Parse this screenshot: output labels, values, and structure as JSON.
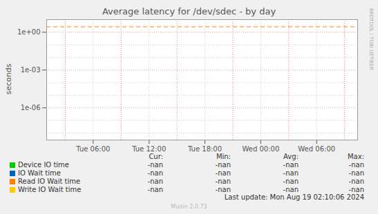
{
  "chart_data": {
    "type": "line",
    "title": "Average latency for /dev/sdec - by day",
    "y_label": "seconds",
    "side_text": "RRDTOOL / TOBI OETIKER",
    "footer": "Last update: Mon Aug 19 02:10:06 2024",
    "version": "Munin 2.0.73",
    "log": "y",
    "grid": true,
    "x": [
      1.0,
      34.4
    ],
    "xlim": [
      1.0,
      34.4
    ],
    "xticks": [
      {
        "value": 6,
        "label": "Tue 06:00"
      },
      {
        "value": 12,
        "label": "Tue 12:00"
      },
      {
        "value": 18,
        "label": "Tue 18:00"
      },
      {
        "value": 24,
        "label": "Wed 00:00"
      },
      {
        "value": 30,
        "label": "Wed 06:00"
      }
    ],
    "x_major_grid": [
      3,
      9,
      15,
      21,
      27,
      33
    ],
    "ylim": [
      2.8e-09,
      10
    ],
    "yticks": [
      {
        "value": 1,
        "label": "1e+00"
      },
      {
        "value": 0.001,
        "label": "1e-03"
      },
      {
        "value": 1e-06,
        "label": "1e-06"
      }
    ],
    "y_minor_grid": [
      10,
      0.1,
      0.01,
      0.0001,
      1e-05,
      1e-07,
      1e-08
    ],
    "reference_lines": [
      {
        "value": 2.7,
        "color": "#ff8000",
        "line_style": "dashed"
      }
    ],
    "legend_columns": [
      "Cur:",
      "Min:",
      "Avg:",
      "Max:"
    ],
    "series": [
      {
        "name": "Device IO time",
        "color": "#00cc00",
        "values": [
          null,
          null
        ],
        "stats": [
          "-nan",
          "-nan",
          "-nan",
          "-nan"
        ]
      },
      {
        "name": "IO Wait time",
        "color": "#0066b3",
        "values": [
          null,
          null
        ],
        "stats": [
          "-nan",
          "-nan",
          "-nan",
          "-nan"
        ]
      },
      {
        "name": "Read IO Wait time",
        "color": "#ff8000",
        "values": [
          null,
          null
        ],
        "stats": [
          "-nan",
          "-nan",
          "-nan",
          "-nan"
        ]
      },
      {
        "name": "Write IO Wait time",
        "color": "#ffcc00",
        "values": [
          null,
          null
        ],
        "stats": [
          "-nan",
          "-nan",
          "-nan",
          "-nan"
        ]
      }
    ]
  }
}
